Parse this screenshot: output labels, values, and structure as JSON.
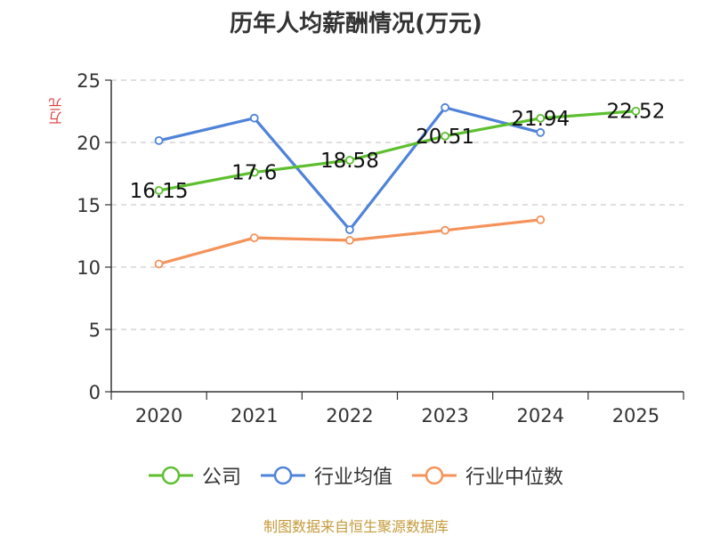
{
  "chart_data": {
    "type": "line",
    "title": "历年人均薪酬情况(万元)",
    "ylabel": "万元",
    "xlabel": "",
    "categories": [
      "2020",
      "2021",
      "2022",
      "2023",
      "2024",
      "2025"
    ],
    "ylim": [
      0,
      25
    ],
    "yticks": [
      0,
      5,
      10,
      15,
      20,
      25
    ],
    "grid": true,
    "legend_position": "bottom",
    "series": [
      {
        "name": "公司",
        "color": "#5dbf2f",
        "values": [
          16.15,
          17.6,
          18.58,
          20.51,
          21.94,
          22.52
        ],
        "show_labels": true
      },
      {
        "name": "行业均值",
        "color": "#4f83d9",
        "values": [
          20.15,
          21.95,
          13.0,
          22.8,
          20.8,
          null
        ],
        "show_labels": false
      },
      {
        "name": "行业中位数",
        "color": "#f5925a",
        "values": [
          10.25,
          12.35,
          12.15,
          12.95,
          13.8,
          null
        ],
        "show_labels": false
      }
    ]
  },
  "source": "制图数据来自恒生聚源数据库"
}
